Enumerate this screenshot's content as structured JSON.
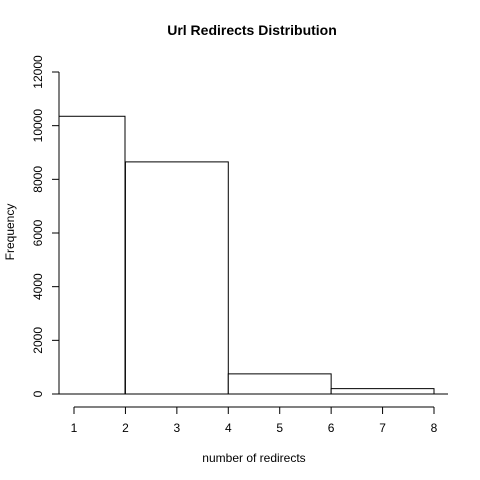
{
  "chart_data": {
    "type": "bar",
    "title": "Url Redirects Distribution",
    "xlabel": "number of redirects",
    "ylabel": "Frequency",
    "bins": [
      {
        "start": 1,
        "end": 2,
        "value": 10350
      },
      {
        "start": 2,
        "end": 4,
        "value": 8650
      },
      {
        "start": 4,
        "end": 6,
        "value": 750
      },
      {
        "start": 6,
        "end": 8,
        "value": 200
      }
    ],
    "xlim": [
      1,
      8
    ],
    "ylim": [
      0,
      12000
    ],
    "x_ticks": [
      "1",
      "2",
      "3",
      "4",
      "5",
      "6",
      "7",
      "8"
    ],
    "y_ticks": [
      "0",
      "2000",
      "4000",
      "6000",
      "8000",
      "10000",
      "12000"
    ],
    "grid": false
  }
}
